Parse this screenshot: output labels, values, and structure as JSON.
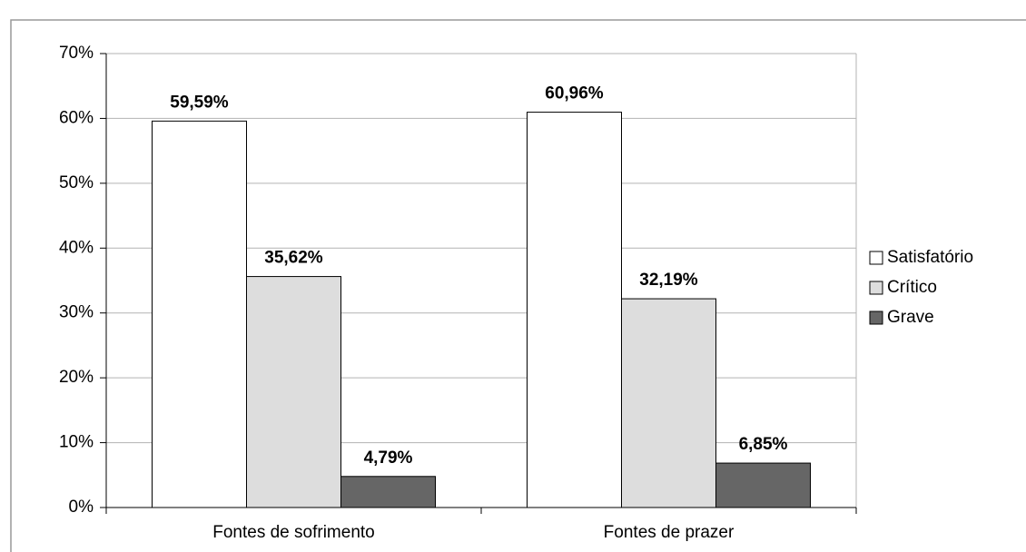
{
  "chart_data": {
    "type": "bar",
    "categories": [
      "Fontes de sofrimento",
      "Fontes de prazer"
    ],
    "series": [
      {
        "name": "Satisfatório",
        "color": "#ffffff",
        "values": [
          59.59,
          60.96
        ],
        "value_labels": [
          "59,59%",
          "60,96%"
        ]
      },
      {
        "name": "Crítico",
        "color": "#dddddd",
        "values": [
          35.62,
          32.19
        ],
        "value_labels": [
          "35,62%",
          "32,19%"
        ]
      },
      {
        "name": "Grave",
        "color": "#666666",
        "values": [
          4.79,
          6.85
        ],
        "value_labels": [
          "4,79%",
          "6,85%"
        ]
      }
    ],
    "ylim": [
      0,
      70
    ],
    "yticks": [
      {
        "value": 0,
        "label": "0%"
      },
      {
        "value": 10,
        "label": "10%"
      },
      {
        "value": 20,
        "label": "20%"
      },
      {
        "value": 30,
        "label": "30%"
      },
      {
        "value": 40,
        "label": "40%"
      },
      {
        "value": 50,
        "label": "50%"
      },
      {
        "value": 60,
        "label": "60%"
      },
      {
        "value": 70,
        "label": "70%"
      }
    ],
    "grid": true,
    "legend": "right"
  }
}
